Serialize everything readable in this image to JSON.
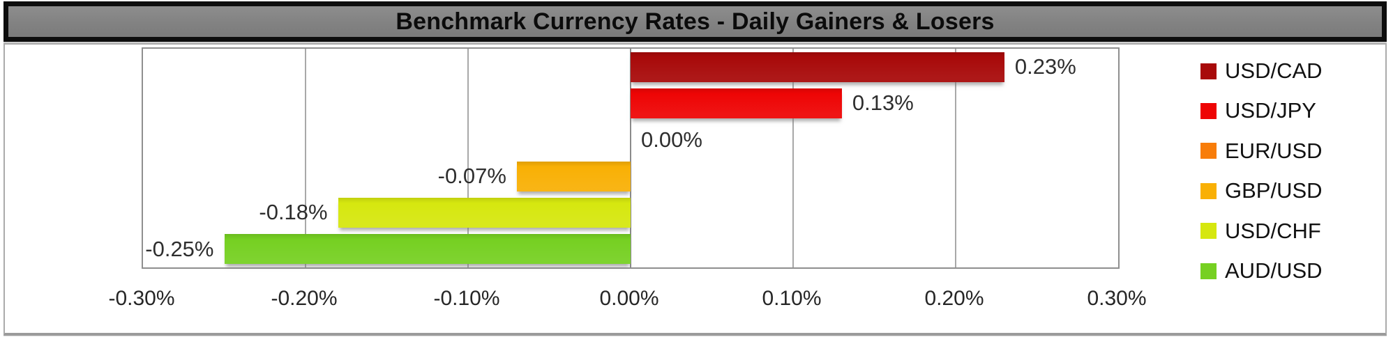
{
  "title": "Benchmark Currency Rates - Daily Gainers & Losers",
  "colors": {
    "title_bar_fill": "#828282",
    "title_bar_border": "#0d0d0d",
    "frame_border": "#ababab",
    "plot_border": "#8f8f8f",
    "gridline": "#a8a8a8",
    "data_label_text": "#2e2e2e",
    "axis_label_text": "#262626"
  },
  "chart_data": {
    "type": "bar",
    "orientation": "horizontal",
    "title": "Benchmark Currency Rates - Daily Gainers & Losers",
    "xlabel": "",
    "ylabel": "",
    "xlim": [
      -0.3,
      0.3
    ],
    "grid": "vertical",
    "legend_position": "right",
    "series": [
      {
        "name": "USD/CAD",
        "value": 0.23,
        "label": "0.23%",
        "color": "#A80A0A"
      },
      {
        "name": "USD/JPY",
        "value": 0.13,
        "label": "0.13%",
        "color": "#EE0505"
      },
      {
        "name": "EUR/USD",
        "value": 0.0,
        "label": "0.00%",
        "color": "#F87D0A"
      },
      {
        "name": "GBP/USD",
        "value": -0.07,
        "label": "-0.07%",
        "color": "#F9B005"
      },
      {
        "name": "USD/CHF",
        "value": -0.18,
        "label": "-0.18%",
        "color": "#D6E70F"
      },
      {
        "name": "AUD/USD",
        "value": -0.25,
        "label": "-0.25%",
        "color": "#76D022"
      }
    ],
    "x_ticks": {
      "values": [
        -0.3,
        -0.2,
        -0.1,
        0.0,
        0.1,
        0.2,
        0.3
      ],
      "labels": [
        "-0.30%",
        "-0.20%",
        "-0.10%",
        "0.00%",
        "0.10%",
        "0.20%",
        "0.30%"
      ]
    }
  }
}
